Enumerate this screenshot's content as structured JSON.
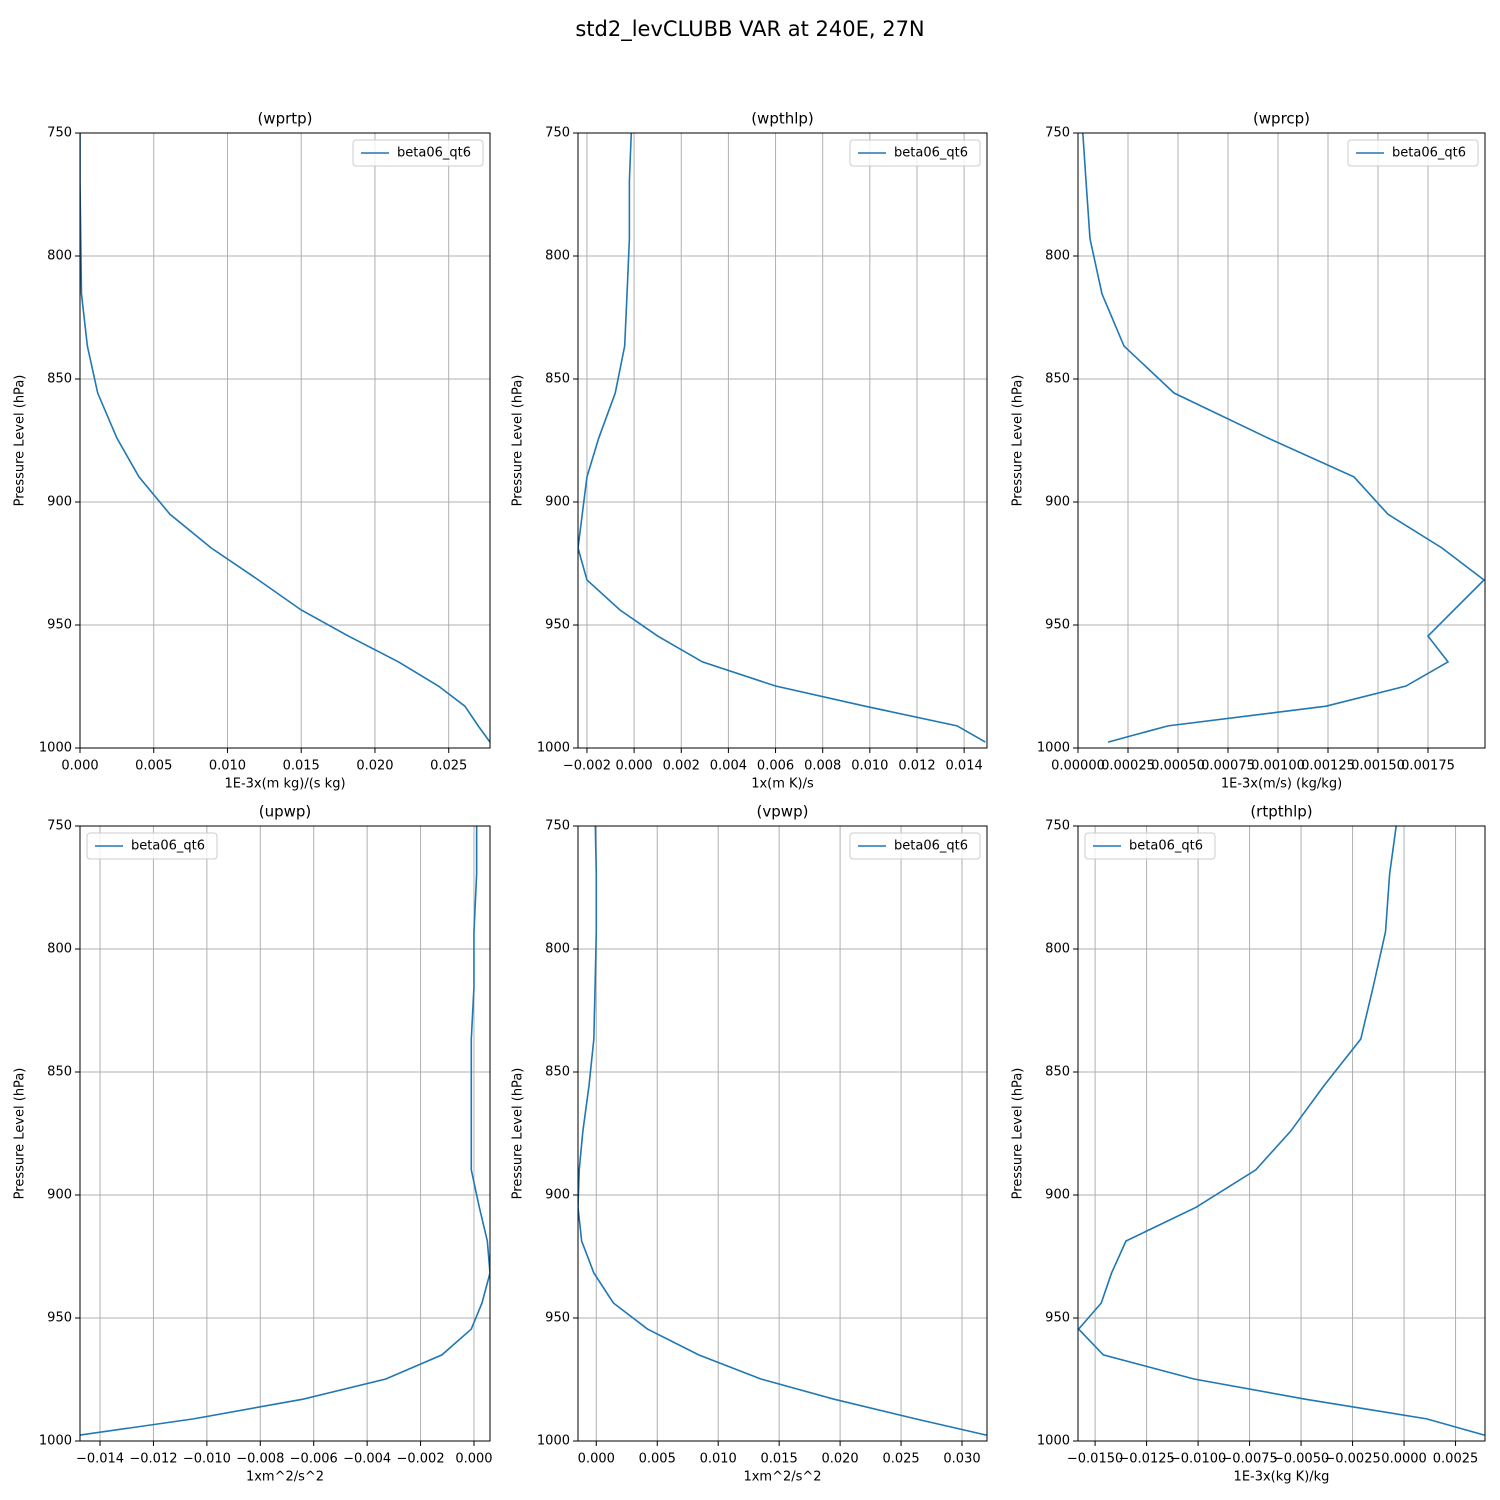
{
  "title": "std2_levCLUBB VAR at 240E, 27N",
  "chart_data": [
    {
      "type": "line",
      "title": "(wprtp)",
      "xlabel": "1E-3x(m kg)/(s kg)",
      "ylabel": "Pressure Level (hPa)",
      "y": [
        745,
        769.5,
        793,
        815.4,
        836.6,
        855.7,
        874,
        889.8,
        905,
        918.7,
        931.7,
        943.9,
        954.5,
        965,
        974.8,
        983,
        991,
        997.6
      ],
      "series": [
        {
          "name": "beta06_qt6",
          "color": "#1f77b4",
          "values": [
            0,
            0,
            5e-05,
            0.0001,
            0.0005,
            0.0012,
            0.0025,
            0.004,
            0.0061,
            0.0089,
            0.0121,
            0.015,
            0.0182,
            0.0216,
            0.0243,
            0.0261,
            0.027,
            0.0278
          ]
        }
      ],
      "xlim": [
        0,
        0.0278
      ],
      "xticks": [
        {
          "value": 0,
          "label": "0.000"
        },
        0.005,
        {
          "value": 0.01,
          "label": "0.010"
        },
        0.015,
        {
          "value": 0.02,
          "label": "0.020"
        },
        0.025
      ],
      "ylim": [
        1000,
        750
      ],
      "yticks": [
        750,
        800,
        850,
        900,
        950,
        1000
      ],
      "grid": true,
      "legend": "upper right"
    },
    {
      "type": "line",
      "title": "(wpthlp)",
      "xlabel": "1x(m K)/s",
      "ylabel": "Pressure Level (hPa)",
      "y": [
        745,
        769.5,
        793,
        815.4,
        836.6,
        855.7,
        874,
        889.8,
        905,
        918.7,
        931.7,
        943.9,
        954.5,
        965,
        974.8,
        983,
        991,
        997.6
      ],
      "series": [
        {
          "name": "beta06_qt6",
          "color": "#1f77b4",
          "values": [
            -0.0001,
            -0.0002,
            -0.0002,
            -0.0003,
            -0.0004,
            -0.0008,
            -0.0015,
            -0.002,
            -0.0022,
            -0.00238,
            -0.002,
            -0.0006,
            0.001,
            0.0029,
            0.006,
            0.0098,
            0.0137,
            0.0149
          ]
        }
      ],
      "xlim": [
        -0.00238,
        0.01497
      ],
      "xticks": [
        {
          "value": -0.002,
          "label": "−0.002"
        },
        {
          "value": 0,
          "label": "0.000"
        },
        0.002,
        0.004,
        0.006,
        0.008,
        {
          "value": 0.01,
          "label": "0.010"
        },
        0.012,
        0.014
      ],
      "ylim": [
        1000,
        750
      ],
      "yticks": [
        750,
        800,
        850,
        900,
        950,
        1000
      ],
      "grid": true,
      "legend": "upper right"
    },
    {
      "type": "line",
      "title": "(wprcp)",
      "xlabel": "1E-3x(m/s) (kg/kg)",
      "ylabel": "Pressure Level (hPa)",
      "y": [
        745,
        769.5,
        793,
        815.4,
        836.6,
        855.7,
        874,
        889.8,
        905,
        918.7,
        931.7,
        943.9,
        954.5,
        965,
        974.8,
        983,
        991,
        997.6
      ],
      "series": [
        {
          "name": "beta06_qt6",
          "color": "#1f77b4",
          "values": [
            2e-05,
            4e-05,
            6e-05,
            0.00012,
            0.00023,
            0.00048,
            0.00095,
            0.00138,
            0.00155,
            0.00182,
            0.00203,
            0.00188,
            0.00175,
            0.00185,
            0.00164,
            0.00124,
            0.00045,
            0.00015
          ]
        }
      ],
      "xlim": [
        0,
        0.002035
      ],
      "xticks": [
        {
          "value": 0,
          "label": "0.00000"
        },
        {
          "value": 0.00025,
          "label": "0.00025"
        },
        {
          "value": 0.0005,
          "label": "0.00050"
        },
        {
          "value": 0.00075,
          "label": "0.00075"
        },
        {
          "value": 0.001,
          "label": "0.00100"
        },
        {
          "value": 0.00125,
          "label": "0.00125"
        },
        {
          "value": 0.0015,
          "label": "0.00150"
        },
        {
          "value": 0.00175,
          "label": "0.00175"
        }
      ],
      "ylim": [
        1000,
        750
      ],
      "yticks": [
        750,
        800,
        850,
        900,
        950,
        1000
      ],
      "grid": true,
      "legend": "upper right"
    },
    {
      "type": "line",
      "title": "(upwp)",
      "xlabel": "1xm^2/s^2",
      "ylabel": "Pressure Level (hPa)",
      "y": [
        745,
        769.5,
        793,
        815.4,
        836.6,
        855.7,
        874,
        889.8,
        905,
        918.7,
        931.7,
        943.9,
        954.5,
        965,
        974.8,
        983,
        991,
        997.6
      ],
      "series": [
        {
          "name": "beta06_qt6",
          "color": "#1f77b4",
          "values": [
            0.0001,
            0.0001,
            0,
            0,
            -0.0001,
            -0.0001,
            -0.0001,
            -0.0001,
            0.0002,
            0.0005,
            0.0006,
            0.0003,
            -0.0001,
            -0.0012,
            -0.0033,
            -0.0064,
            -0.0105,
            -0.01475
          ]
        }
      ],
      "xlim": [
        -0.01475,
        0.0006
      ],
      "xticks": [
        {
          "value": -0.014,
          "label": "−0.014"
        },
        {
          "value": -0.012,
          "label": "−0.012"
        },
        {
          "value": -0.01,
          "label": "−0.010"
        },
        {
          "value": -0.008,
          "label": "−0.008"
        },
        {
          "value": -0.006,
          "label": "−0.006"
        },
        {
          "value": -0.004,
          "label": "−0.004"
        },
        {
          "value": -0.002,
          "label": "−0.002"
        },
        {
          "value": 0,
          "label": "0.000"
        }
      ],
      "ylim": [
        1000,
        750
      ],
      "yticks": [
        750,
        800,
        850,
        900,
        950,
        1000
      ],
      "grid": true,
      "legend": "upper left"
    },
    {
      "type": "line",
      "title": "(vpwp)",
      "xlabel": "1xm^2/s^2",
      "ylabel": "Pressure Level (hPa)",
      "y": [
        745,
        769.5,
        793,
        815.4,
        836.6,
        855.7,
        874,
        889.8,
        905,
        918.7,
        931.7,
        943.9,
        954.5,
        965,
        974.8,
        983,
        991,
        997.6
      ],
      "series": [
        {
          "name": "beta06_qt6",
          "color": "#1f77b4",
          "values": [
            -0.0001,
            0,
            0,
            -0.0001,
            -0.0002,
            -0.0006,
            -0.0011,
            -0.0014,
            -0.0015,
            -0.0012,
            -0.0002,
            0.0014,
            0.0042,
            0.0084,
            0.0135,
            0.0195,
            0.0262,
            0.032
          ]
        }
      ],
      "xlim": [
        -0.0015,
        0.03205
      ],
      "xticks": [
        {
          "value": 0,
          "label": "0.000"
        },
        0.005,
        {
          "value": 0.01,
          "label": "0.010"
        },
        0.015,
        {
          "value": 0.02,
          "label": "0.020"
        },
        0.025,
        {
          "value": 0.03,
          "label": "0.030"
        }
      ],
      "ylim": [
        1000,
        750
      ],
      "yticks": [
        750,
        800,
        850,
        900,
        950,
        1000
      ],
      "grid": true,
      "legend": "upper right"
    },
    {
      "type": "line",
      "title": "(rtpthlp)",
      "xlabel": "1E-3x(kg K)/kg",
      "ylabel": "Pressure Level (hPa)",
      "y": [
        745,
        769.5,
        793,
        815.4,
        836.6,
        855.7,
        874,
        889.8,
        905,
        918.7,
        931.7,
        943.9,
        954.5,
        965,
        974.8,
        983,
        991,
        997.6
      ],
      "series": [
        {
          "name": "beta06_qt6",
          "color": "#1f77b4",
          "values": [
            -0.0003,
            -0.0007,
            -0.0009,
            -0.0015,
            -0.0021,
            -0.0039,
            -0.0055,
            -0.0072,
            -0.0101,
            -0.0135,
            -0.0142,
            -0.0147,
            -0.0158,
            -0.0146,
            -0.0102,
            -0.0048,
            0.0011,
            0.0039
          ]
        }
      ],
      "xlim": [
        -0.01583,
        0.00393
      ],
      "xticks": [
        {
          "value": -0.015,
          "label": "−0.0150"
        },
        {
          "value": -0.0125,
          "label": "−0.0125"
        },
        {
          "value": -0.01,
          "label": "−0.0100"
        },
        {
          "value": -0.0075,
          "label": "−0.0075"
        },
        {
          "value": -0.005,
          "label": "−0.0050"
        },
        {
          "value": -0.0025,
          "label": "−0.0025"
        },
        {
          "value": 0,
          "label": "0.0000"
        },
        0.0025
      ],
      "ylim": [
        1000,
        750
      ],
      "yticks": [
        750,
        800,
        850,
        900,
        950,
        1000
      ],
      "grid": true,
      "legend": "upper left"
    }
  ]
}
